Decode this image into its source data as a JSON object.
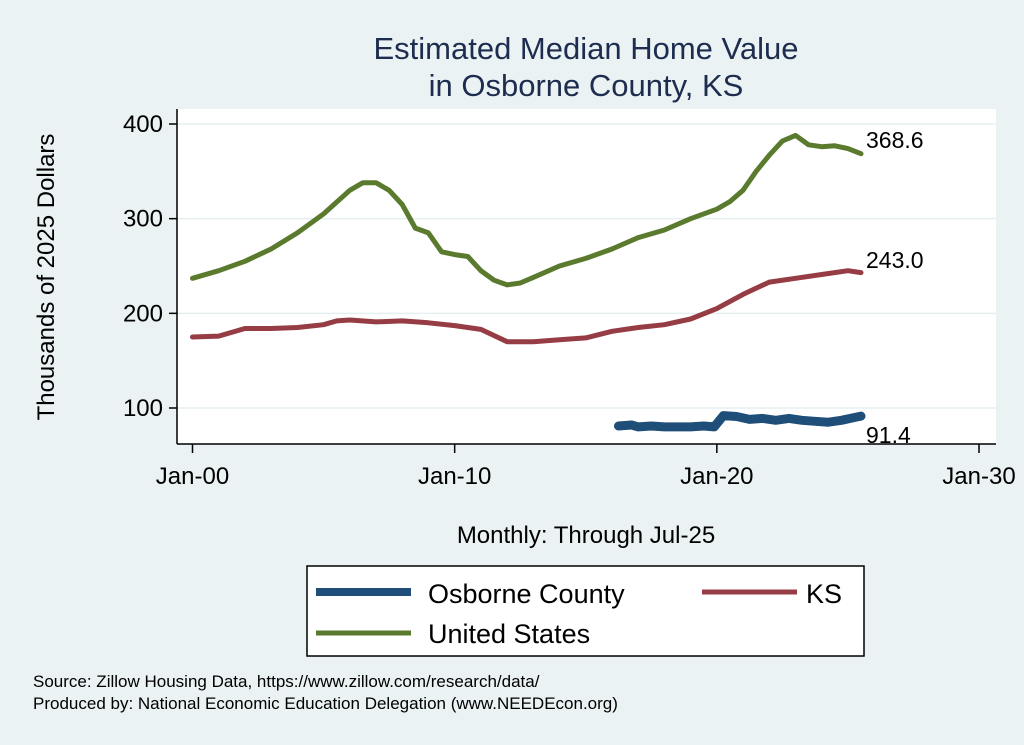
{
  "chart_data": {
    "type": "line",
    "title_lines": [
      "Estimated Median Home Value",
      "in Osborne County, KS"
    ],
    "xlabel": "Monthly: Through Jul-25",
    "ylabel": "Thousands of 2025 Dollars",
    "xlim": [
      1999.5,
      2030
    ],
    "ylim": [
      85,
      410
    ],
    "x_ticks": [
      {
        "value": 2000,
        "label": "Jan-00"
      },
      {
        "value": 2010,
        "label": "Jan-10"
      },
      {
        "value": 2020,
        "label": "Jan-20"
      },
      {
        "value": 2030,
        "label": "Jan-30"
      }
    ],
    "y_ticks": [
      {
        "value": 100,
        "label": "100"
      },
      {
        "value": 200,
        "label": "200"
      },
      {
        "value": 300,
        "label": "300"
      },
      {
        "value": 400,
        "label": "400"
      }
    ],
    "grid": true,
    "legend_position": "bottom",
    "series": [
      {
        "name": "Osborne County",
        "color": "#1f4e79",
        "end_label": "91.4",
        "points": [
          [
            2016.25,
            81
          ],
          [
            2016.75,
            82
          ],
          [
            2017,
            80
          ],
          [
            2017.5,
            81
          ],
          [
            2018,
            80
          ],
          [
            2018.5,
            80
          ],
          [
            2019,
            80
          ],
          [
            2019.5,
            81
          ],
          [
            2019.9,
            80
          ],
          [
            2020.25,
            92
          ],
          [
            2020.75,
            91
          ],
          [
            2021.25,
            88
          ],
          [
            2021.75,
            89
          ],
          [
            2022.25,
            87
          ],
          [
            2022.75,
            89
          ],
          [
            2023.25,
            87
          ],
          [
            2023.75,
            86
          ],
          [
            2024.25,
            85
          ],
          [
            2024.75,
            87
          ],
          [
            2025.25,
            90
          ],
          [
            2025.5,
            91.4
          ]
        ]
      },
      {
        "name": "KS",
        "color": "#963c44",
        "end_label": "243.0",
        "points": [
          [
            2000,
            175
          ],
          [
            2001,
            176
          ],
          [
            2002,
            184
          ],
          [
            2003,
            184
          ],
          [
            2004,
            185
          ],
          [
            2005,
            188
          ],
          [
            2005.5,
            192
          ],
          [
            2006,
            193
          ],
          [
            2007,
            191
          ],
          [
            2008,
            192
          ],
          [
            2009,
            190
          ],
          [
            2010,
            187
          ],
          [
            2011,
            183
          ],
          [
            2012,
            170
          ],
          [
            2013,
            170
          ],
          [
            2014,
            172
          ],
          [
            2015,
            174
          ],
          [
            2016,
            181
          ],
          [
            2017,
            185
          ],
          [
            2018,
            188
          ],
          [
            2019,
            194
          ],
          [
            2020,
            205
          ],
          [
            2021,
            220
          ],
          [
            2022,
            233
          ],
          [
            2023,
            237
          ],
          [
            2024,
            241
          ],
          [
            2025,
            245
          ],
          [
            2025.5,
            243
          ]
        ]
      },
      {
        "name": "United States",
        "color": "#5a7a2e",
        "end_label": "368.6",
        "points": [
          [
            2000,
            237
          ],
          [
            2001,
            245
          ],
          [
            2002,
            255
          ],
          [
            2003,
            268
          ],
          [
            2004,
            285
          ],
          [
            2005,
            305
          ],
          [
            2006,
            330
          ],
          [
            2006.5,
            338
          ],
          [
            2007,
            338
          ],
          [
            2007.5,
            330
          ],
          [
            2008,
            315
          ],
          [
            2008.5,
            290
          ],
          [
            2009,
            285
          ],
          [
            2009.5,
            265
          ],
          [
            2010,
            262
          ],
          [
            2010.5,
            260
          ],
          [
            2011,
            245
          ],
          [
            2011.5,
            235
          ],
          [
            2012,
            230
          ],
          [
            2012.5,
            232
          ],
          [
            2013,
            238
          ],
          [
            2014,
            250
          ],
          [
            2015,
            258
          ],
          [
            2016,
            268
          ],
          [
            2017,
            280
          ],
          [
            2018,
            288
          ],
          [
            2019,
            300
          ],
          [
            2020,
            310
          ],
          [
            2020.5,
            318
          ],
          [
            2021,
            330
          ],
          [
            2021.5,
            350
          ],
          [
            2022,
            367
          ],
          [
            2022.5,
            382
          ],
          [
            2023,
            388
          ],
          [
            2023.5,
            378
          ],
          [
            2024,
            376
          ],
          [
            2024.5,
            377
          ],
          [
            2025,
            374
          ],
          [
            2025.5,
            368.6
          ]
        ]
      }
    ]
  },
  "source_line_1": "Source: Zillow Housing Data, https://www.zillow.com/research/data/",
  "source_line_2": "Produced by: National Economic Education Delegation (www.NEEDEcon.org)"
}
